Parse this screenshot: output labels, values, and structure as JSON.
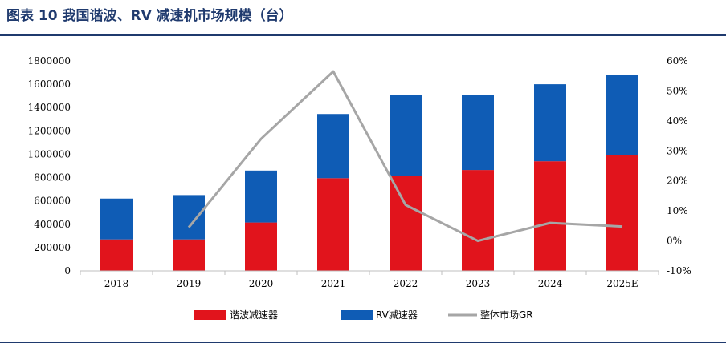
{
  "figure": {
    "title": "图表 10   我国谐波、RV 减速机市场规模（台）"
  },
  "chart_data": {
    "type": "bar",
    "stacked": true,
    "categories": [
      "2018",
      "2019",
      "2020",
      "2021",
      "2022",
      "2023",
      "2024",
      "2025E"
    ],
    "series": [
      {
        "name": "谐波减速器",
        "type": "bar",
        "axis": "left",
        "color": "#e1141c",
        "values": [
          270000,
          270000,
          415000,
          795000,
          815000,
          865000,
          940000,
          995000
        ]
      },
      {
        "name": "RV减速器",
        "type": "bar",
        "axis": "left",
        "color": "#0f5cb5",
        "values": [
          350000,
          380000,
          445000,
          550000,
          690000,
          640000,
          660000,
          685000
        ]
      },
      {
        "name": "整体市场GR",
        "type": "line",
        "axis": "right",
        "color": "#a6a6a6",
        "values": [
          null,
          4.5,
          34,
          56.5,
          12,
          0,
          6,
          4.8
        ]
      }
    ],
    "y_left": {
      "min": 0,
      "max": 1800000,
      "ticks": [
        "0",
        "200000",
        "400000",
        "600000",
        "800000",
        "1000000",
        "1200000",
        "1400000",
        "1600000",
        "1800000"
      ]
    },
    "y_right": {
      "min": -10,
      "max": 60,
      "ticks": [
        "-10%",
        "0%",
        "10%",
        "20%",
        "30%",
        "40%",
        "50%",
        "60%"
      ]
    },
    "legend_position": "bottom",
    "grid": false
  }
}
